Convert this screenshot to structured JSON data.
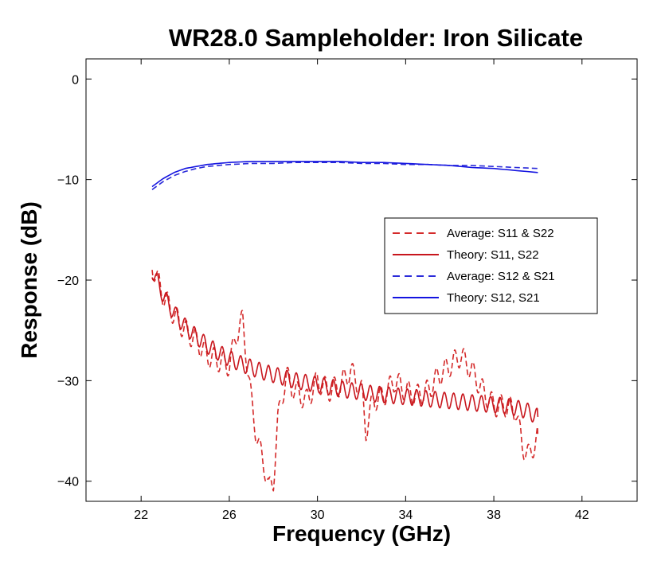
{
  "chart_data": {
    "type": "line",
    "title": "WR28.0 Sampleholder:  Iron Silicate",
    "xlabel": "Frequency (GHz)",
    "ylabel": "Response (dB)",
    "xlim": [
      19.5,
      44.5
    ],
    "ylim": [
      -42,
      2
    ],
    "xticks": [
      22,
      26,
      30,
      34,
      38,
      42
    ],
    "yticks": [
      0,
      -10,
      -20,
      -30,
      -40
    ],
    "xtick_labels": [
      "22",
      "26",
      "30",
      "34",
      "38",
      "42"
    ],
    "ytick_labels": [
      "0",
      "−10",
      "−20",
      "−30",
      "−40"
    ],
    "legend_position": "right-center",
    "series": [
      {
        "name": "Average: S11 & S22",
        "color": "#d42a2a",
        "style": "dashed",
        "x": [
          22.5,
          23.0,
          23.5,
          24.0,
          24.5,
          25.0,
          25.5,
          26.0,
          26.3,
          26.6,
          26.8,
          27.0,
          27.2,
          27.4,
          27.6,
          27.8,
          28.0,
          28.2,
          28.4,
          28.6,
          28.8,
          29.0,
          29.5,
          30.0,
          30.5,
          31.0,
          31.5,
          32.0,
          32.2,
          32.5,
          33.0,
          33.5,
          34.0,
          34.5,
          35.0,
          35.5,
          36.0,
          36.5,
          37.0,
          37.5,
          38.0,
          38.5,
          39.0,
          39.3,
          39.6,
          40.0
        ],
        "y": [
          -18.5,
          -21.5,
          -23.5,
          -25.0,
          -26.0,
          -27.5,
          -28.0,
          -28.5,
          -25.5,
          -24.0,
          -28.0,
          -32.0,
          -35.0,
          -37.0,
          -38.5,
          -40.8,
          -40.0,
          -34.0,
          -31.5,
          -29.5,
          -30.5,
          -31.0,
          -32.0,
          -30.0,
          -31.0,
          -30.5,
          -29.0,
          -31.0,
          -35.0,
          -32.0,
          -31.5,
          -30.0,
          -31.0,
          -31.5,
          -31.0,
          -29.5,
          -28.5,
          -27.5,
          -29.0,
          -31.0,
          -32.5,
          -32.5,
          -33.0,
          -36.5,
          -37.5,
          -35.5
        ]
      },
      {
        "name": "Theory: S11, S22",
        "color": "#c8161d",
        "style": "solid",
        "x": [
          22.5,
          23.0,
          23.5,
          24.0,
          24.5,
          25.0,
          25.5,
          26.0,
          26.5,
          27.0,
          27.5,
          28.0,
          28.5,
          29.0,
          29.5,
          30.0,
          30.5,
          31.0,
          31.5,
          32.0,
          32.5,
          33.0,
          33.5,
          34.0,
          34.5,
          35.0,
          35.5,
          36.0,
          36.5,
          37.0,
          37.5,
          38.0,
          38.5,
          39.0,
          39.5,
          40.0
        ],
        "y": [
          -19.0,
          -21.5,
          -23.3,
          -24.6,
          -25.6,
          -26.5,
          -27.2,
          -27.8,
          -28.3,
          -28.7,
          -29.1,
          -29.4,
          -29.7,
          -30.0,
          -30.2,
          -30.4,
          -30.6,
          -30.8,
          -31.0,
          -31.1,
          -31.3,
          -31.4,
          -31.5,
          -31.6,
          -31.7,
          -31.8,
          -31.9,
          -32.0,
          -32.1,
          -32.2,
          -32.3,
          -32.4,
          -32.5,
          -32.7,
          -33.0,
          -33.6
        ]
      },
      {
        "name": "Average: S12 & S21",
        "color": "#2b2bd9",
        "style": "dashed",
        "x": [
          22.5,
          23.0,
          23.5,
          24.0,
          24.5,
          25.0,
          25.5,
          26.0,
          27.0,
          28.0,
          29.0,
          30.0,
          31.0,
          32.0,
          33.0,
          34.0,
          35.0,
          36.0,
          37.0,
          38.0,
          39.0,
          40.0
        ],
        "y": [
          -11.0,
          -10.2,
          -9.6,
          -9.2,
          -8.9,
          -8.7,
          -8.6,
          -8.5,
          -8.4,
          -8.4,
          -8.3,
          -8.3,
          -8.3,
          -8.4,
          -8.4,
          -8.5,
          -8.5,
          -8.6,
          -8.6,
          -8.7,
          -8.8,
          -8.9
        ]
      },
      {
        "name": "Theory: S12, S21",
        "color": "#1414e0",
        "style": "solid",
        "x": [
          22.5,
          23.0,
          23.5,
          24.0,
          24.5,
          25.0,
          25.5,
          26.0,
          27.0,
          28.0,
          29.0,
          30.0,
          31.0,
          32.0,
          33.0,
          34.0,
          35.0,
          36.0,
          37.0,
          38.0,
          39.0,
          40.0
        ],
        "y": [
          -10.7,
          -9.9,
          -9.3,
          -8.9,
          -8.7,
          -8.5,
          -8.4,
          -8.3,
          -8.2,
          -8.2,
          -8.2,
          -8.2,
          -8.2,
          -8.3,
          -8.3,
          -8.4,
          -8.5,
          -8.6,
          -8.8,
          -8.9,
          -9.1,
          -9.3
        ]
      }
    ]
  }
}
